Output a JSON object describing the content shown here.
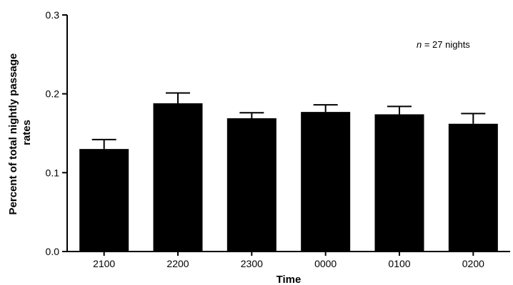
{
  "chart_data": {
    "type": "bar",
    "xlabel": "Time",
    "ylabel_lines": [
      "Percent of total nightly passage",
      "rates"
    ],
    "categories": [
      "2100",
      "2200",
      "2300",
      "0000",
      "0100",
      "0200"
    ],
    "values": [
      0.13,
      0.188,
      0.169,
      0.177,
      0.174,
      0.162
    ],
    "errors": [
      0.012,
      0.013,
      0.007,
      0.009,
      0.01,
      0.013
    ],
    "ylim": [
      0.0,
      0.3
    ],
    "yticks": [
      "0.0",
      "0.1",
      "0.2",
      "0.3"
    ],
    "ytick_values": [
      0.0,
      0.1,
      0.2,
      0.3
    ],
    "grid": false,
    "bar_color": "#000000",
    "annotation": {
      "italic_part": "n",
      "rest": " = 27 nights"
    }
  }
}
